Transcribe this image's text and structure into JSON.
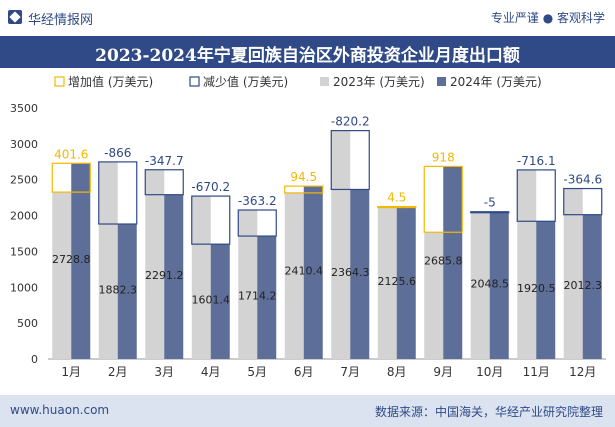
{
  "header": {
    "brand": "华经情报网",
    "tagline": "专业严谨 ● 客观科学"
  },
  "title": "2023-2024年宁夏回族自治区外商投资企业月度出口额",
  "footer": {
    "url": "www.huaon.com",
    "source": "数据来源：中国海关，华经产业研究院整理"
  },
  "colors": {
    "increase": "#f5b800",
    "decrease": "#2f4a86",
    "y2023": "#d3d3d3",
    "y2024": "#5d6e99",
    "header_bg": "#2f4a86",
    "footer_bg": "#dbe3f1"
  },
  "chart_data": {
    "type": "bar",
    "categories": [
      "1月",
      "2月",
      "3月",
      "4月",
      "5月",
      "6月",
      "7月",
      "8月",
      "9月",
      "10月",
      "11月",
      "12月"
    ],
    "series": [
      {
        "name": "2023年 (万美元)",
        "values": [
          2327.2,
          2748.3,
          2638.9,
          2271.6,
          2077.5,
          2315.9,
          3184.5,
          2121.1,
          1767.8,
          2053.5,
          2636.6,
          2376.9
        ]
      },
      {
        "name": "2024年 (万美元)",
        "values": [
          2728.8,
          1882.3,
          2291.2,
          1601.4,
          1714.2,
          2410.4,
          2364.3,
          2125.6,
          2685.8,
          2048.5,
          1920.5,
          2012.3
        ]
      }
    ],
    "changes": {
      "values": [
        401.6,
        -866,
        -347.7,
        -670.2,
        -363.2,
        94.5,
        -820.2,
        4.5,
        918,
        -5,
        -716.1,
        -364.6
      ],
      "labels": [
        "401.6",
        "-866",
        "-347.7",
        "-670.2",
        "-363.2",
        "94.5",
        "-820.2",
        "4.5",
        "918",
        "-5",
        "-716.1",
        "-364.6"
      ]
    },
    "data_labels_2024": [
      "2728.8",
      "1882.3",
      "2291.2",
      "1601.4",
      "1714.2",
      "2410.4",
      "2364.3",
      "2125.6",
      "2685.8",
      "2048.5",
      "1920.5",
      "2012.3"
    ],
    "legend": [
      "增加值 (万美元)",
      "减少值 (万美元)",
      "2023年 (万美元)",
      "2024年 (万美元)"
    ],
    "legend_position": "top",
    "ylim": [
      0,
      3500
    ],
    "yticks": [
      0,
      500,
      1000,
      1500,
      2000,
      2500,
      3000,
      3500
    ],
    "grid": false
  }
}
